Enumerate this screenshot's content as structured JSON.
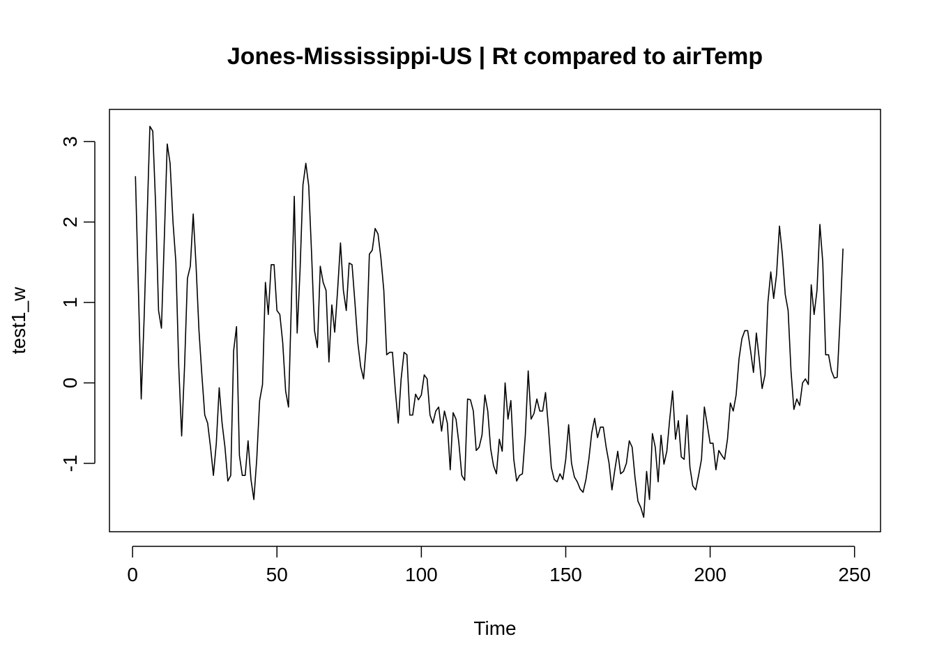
{
  "chart_data": {
    "type": "line",
    "title": "Jones-Mississippi-US | Rt compared to airTemp",
    "xlabel": "Time",
    "ylabel": "test1_w",
    "xlim": [
      -8,
      259
    ],
    "ylim": [
      -1.85,
      3.4
    ],
    "x_ticks": [
      0,
      50,
      100,
      150,
      200,
      250
    ],
    "x_tick_labels": [
      "0",
      "50",
      "100",
      "150",
      "200",
      "250"
    ],
    "y_ticks": [
      -1,
      0,
      1,
      2,
      3
    ],
    "y_tick_labels": [
      "-1",
      "0",
      "1",
      "2",
      "3"
    ],
    "grid": false,
    "legend": "none",
    "line_color": "#000000",
    "series": [
      {
        "x_start": 1,
        "values": [
          2.57,
          1.2,
          -0.2,
          0.8,
          2.0,
          3.19,
          3.13,
          2.2,
          0.9,
          0.68,
          1.8,
          2.97,
          2.73,
          2.0,
          1.5,
          0.2,
          -0.66,
          0.2,
          1.3,
          1.45,
          2.1,
          1.45,
          0.65,
          0.1,
          -0.4,
          -0.5,
          -0.8,
          -1.15,
          -0.75,
          -0.06,
          -0.5,
          -0.8,
          -1.22,
          -1.15,
          0.4,
          0.7,
          -0.9,
          -1.15,
          -1.15,
          -0.72,
          -1.2,
          -1.45,
          -0.95,
          -0.22,
          -0.02,
          1.25,
          0.85,
          1.47,
          1.47,
          0.9,
          0.85,
          0.5,
          -0.1,
          -0.3,
          1.0,
          2.32,
          0.62,
          1.4,
          2.46,
          2.73,
          2.45,
          1.6,
          0.65,
          0.44,
          1.45,
          1.25,
          1.15,
          0.26,
          0.97,
          0.63,
          1.15,
          1.74,
          1.15,
          0.9,
          1.49,
          1.47,
          1.0,
          0.5,
          0.2,
          0.05,
          0.5,
          1.6,
          1.65,
          1.92,
          1.85,
          1.55,
          1.15,
          0.35,
          0.38,
          0.38,
          -0.1,
          -0.5,
          0.05,
          0.38,
          0.35,
          -0.4,
          -0.4,
          -0.14,
          -0.21,
          -0.15,
          0.1,
          0.05,
          -0.4,
          -0.5,
          -0.35,
          -0.3,
          -0.6,
          -0.35,
          -0.5,
          -1.08,
          -0.37,
          -0.45,
          -0.75,
          -1.15,
          -1.21,
          -0.2,
          -0.21,
          -0.35,
          -0.84,
          -0.8,
          -0.65,
          -0.15,
          -0.35,
          -0.82,
          -1.03,
          -1.13,
          -0.7,
          -0.85,
          0.0,
          -0.45,
          -0.22,
          -0.95,
          -1.22,
          -1.15,
          -1.13,
          -0.65,
          0.15,
          -0.45,
          -0.38,
          -0.2,
          -0.35,
          -0.35,
          -0.12,
          -0.55,
          -1.05,
          -1.2,
          -1.23,
          -1.13,
          -1.2,
          -0.95,
          -0.52,
          -1.0,
          -1.17,
          -1.23,
          -1.32,
          -1.36,
          -1.2,
          -0.95,
          -0.62,
          -0.44,
          -0.68,
          -0.55,
          -0.55,
          -0.8,
          -1.0,
          -1.33,
          -1.08,
          -0.85,
          -1.13,
          -1.1,
          -1.0,
          -0.72,
          -0.8,
          -1.18,
          -1.47,
          -1.55,
          -1.67,
          -1.1,
          -1.45,
          -0.63,
          -0.8,
          -1.23,
          -0.65,
          -1.01,
          -0.85,
          -0.45,
          -0.1,
          -0.7,
          -0.47,
          -0.92,
          -0.95,
          -0.4,
          -1.05,
          -1.28,
          -1.33,
          -1.15,
          -0.95,
          -0.3,
          -0.52,
          -0.75,
          -0.75,
          -1.08,
          -0.84,
          -0.9,
          -0.95,
          -0.7,
          -0.25,
          -0.35,
          -0.15,
          0.3,
          0.55,
          0.65,
          0.65,
          0.4,
          0.13,
          0.62,
          0.3,
          -0.07,
          0.1,
          1.0,
          1.38,
          1.05,
          1.35,
          1.95,
          1.6,
          1.1,
          0.9,
          0.15,
          -0.33,
          -0.2,
          -0.28,
          0.0,
          0.05,
          -0.02,
          1.22,
          0.85,
          1.15,
          1.97,
          1.5,
          0.35,
          0.35,
          0.15,
          0.06,
          0.07,
          0.8,
          1.67
        ]
      }
    ]
  }
}
